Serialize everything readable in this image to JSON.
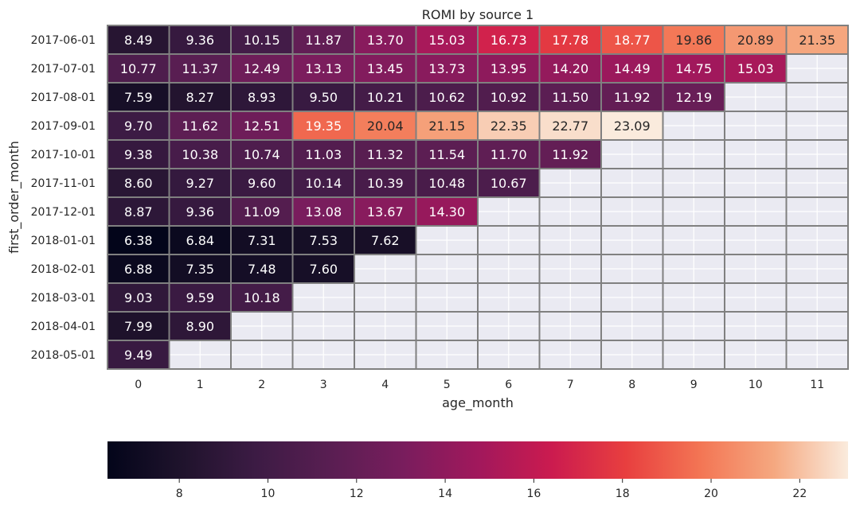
{
  "chart_data": {
    "type": "heatmap",
    "title": "ROMI by source 1",
    "xlabel": "age_month",
    "ylabel": "first_order_month",
    "x": [
      0,
      1,
      2,
      3,
      4,
      5,
      6,
      7,
      8,
      9,
      10,
      11
    ],
    "y": [
      "2017-06-01",
      "2017-07-01",
      "2017-08-01",
      "2017-09-01",
      "2017-10-01",
      "2017-11-01",
      "2017-12-01",
      "2018-01-01",
      "2018-02-01",
      "2018-03-01",
      "2018-04-01",
      "2018-05-01"
    ],
    "values": [
      [
        8.49,
        9.36,
        10.15,
        11.87,
        13.7,
        15.03,
        16.73,
        17.78,
        18.77,
        19.86,
        20.89,
        21.35
      ],
      [
        10.77,
        11.37,
        12.49,
        13.13,
        13.45,
        13.73,
        13.95,
        14.2,
        14.49,
        14.75,
        15.03,
        null
      ],
      [
        7.59,
        8.27,
        8.93,
        9.5,
        10.21,
        10.62,
        10.92,
        11.5,
        11.92,
        12.19,
        null,
        null
      ],
      [
        9.7,
        11.62,
        12.51,
        19.35,
        20.04,
        21.15,
        22.35,
        22.77,
        23.09,
        null,
        null,
        null
      ],
      [
        9.38,
        10.38,
        10.74,
        11.03,
        11.32,
        11.54,
        11.7,
        11.92,
        null,
        null,
        null,
        null
      ],
      [
        8.6,
        9.27,
        9.6,
        10.14,
        10.39,
        10.48,
        10.67,
        null,
        null,
        null,
        null,
        null
      ],
      [
        8.87,
        9.36,
        11.09,
        13.08,
        13.67,
        14.3,
        null,
        null,
        null,
        null,
        null,
        null
      ],
      [
        6.38,
        6.84,
        7.31,
        7.53,
        7.62,
        null,
        null,
        null,
        null,
        null,
        null,
        null
      ],
      [
        6.88,
        7.35,
        7.48,
        7.6,
        null,
        null,
        null,
        null,
        null,
        null,
        null,
        null
      ],
      [
        9.03,
        9.59,
        10.18,
        null,
        null,
        null,
        null,
        null,
        null,
        null,
        null,
        null
      ],
      [
        7.99,
        8.9,
        null,
        null,
        null,
        null,
        null,
        null,
        null,
        null,
        null,
        null
      ],
      [
        9.49,
        null,
        null,
        null,
        null,
        null,
        null,
        null,
        null,
        null,
        null,
        null
      ]
    ],
    "colorbar": {
      "orientation": "horizontal",
      "position": "bottom",
      "range": [
        6.38,
        23.09
      ],
      "ticks": [
        8,
        10,
        12,
        14,
        16,
        18,
        20,
        22
      ],
      "colormap": "rocket"
    },
    "grid": true,
    "cell_border_color": "#808080",
    "missing_color": "#eaeaf2"
  }
}
